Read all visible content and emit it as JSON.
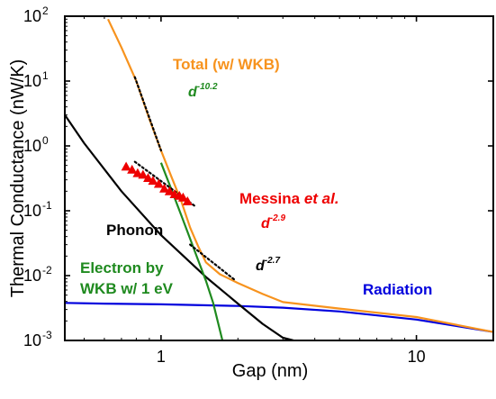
{
  "chart_data": {
    "type": "line",
    "title": "",
    "xlabel": "Gap (nm)",
    "ylabel": "Thermal Conductance (nW/K)",
    "x_scale": "log",
    "y_scale": "log",
    "xlim": [
      0.42,
      20
    ],
    "ylim": [
      0.001,
      100
    ],
    "x_ticks": [
      {
        "value": 1,
        "label": "1"
      },
      {
        "value": 10,
        "label": "10"
      }
    ],
    "y_ticks": [
      {
        "value": 100,
        "base": "10",
        "exp": "2"
      },
      {
        "value": 10,
        "base": "10",
        "exp": "1"
      },
      {
        "value": 1,
        "base": "10",
        "exp": "0"
      },
      {
        "value": 0.1,
        "base": "10",
        "exp": "-1"
      },
      {
        "value": 0.01,
        "base": "10",
        "exp": "-2"
      },
      {
        "value": 0.001,
        "base": "10",
        "exp": "-3"
      }
    ],
    "grid": false,
    "series": [
      {
        "label": "Total (w/ WKB)",
        "color": "#f7931e",
        "x": [
          0.62,
          0.7,
          0.8,
          0.9,
          1.0,
          1.1,
          1.2,
          1.3,
          1.4,
          1.5,
          1.7,
          2.0,
          2.5,
          3.0,
          5.0,
          10.0,
          20.0
        ],
        "y": [
          90,
          33,
          10,
          2.6,
          0.85,
          0.33,
          0.14,
          0.055,
          0.028,
          0.016,
          0.0105,
          0.0077,
          0.0052,
          0.0039,
          0.0031,
          0.0023,
          0.00135
        ]
      },
      {
        "label": "Phonon",
        "color": "#000000",
        "x": [
          0.42,
          0.5,
          0.7,
          1.0,
          1.5,
          2.0,
          2.5,
          3.0,
          3.3
        ],
        "y": [
          3.0,
          1.1,
          0.2,
          0.042,
          0.0095,
          0.0037,
          0.0018,
          0.0011,
          0.001
        ]
      },
      {
        "label": "Electron by",
        "label2": "WKB w/ 1 eV",
        "color": "#1f8a1f",
        "x": [
          1.0,
          1.1,
          1.2,
          1.3,
          1.4,
          1.5,
          1.6,
          1.74
        ],
        "y": [
          0.55,
          0.21,
          0.085,
          0.037,
          0.017,
          0.0083,
          0.0038,
          0.001
        ]
      },
      {
        "label": "Radiation",
        "color": "#0000dd",
        "x": [
          0.42,
          0.6,
          1.0,
          2.0,
          3.0,
          5.0,
          10.0,
          20.0
        ],
        "y": [
          0.0038,
          0.0037,
          0.0036,
          0.0034,
          0.0032,
          0.0028,
          0.0021,
          0.00135
        ]
      }
    ],
    "scatter": {
      "label": "Messina",
      "label_italic": "et al.",
      "color": "#ee0000",
      "x": [
        0.73,
        0.77,
        0.81,
        0.85,
        0.89,
        0.93,
        0.98,
        1.03,
        1.08,
        1.13,
        1.18,
        1.22,
        1.27
      ],
      "y": [
        0.48,
        0.43,
        0.38,
        0.36,
        0.32,
        0.29,
        0.26,
        0.22,
        0.2,
        0.18,
        0.17,
        0.16,
        0.14
      ]
    },
    "fits": [
      {
        "base": "d",
        "exp": "-10.2",
        "color": "#1f8a1f",
        "x": [
          0.79,
          1.0
        ],
        "y": [
          11.5,
          0.85
        ]
      },
      {
        "base": "d",
        "exp": "-2.9",
        "color": "#ee0000",
        "x": [
          0.79,
          1.35
        ],
        "y": [
          0.57,
          0.12
        ]
      },
      {
        "base": "d",
        "exp": "-2.7",
        "color": "#000000",
        "x": [
          1.3,
          1.95
        ],
        "y": [
          0.03,
          0.0085
        ]
      }
    ]
  }
}
